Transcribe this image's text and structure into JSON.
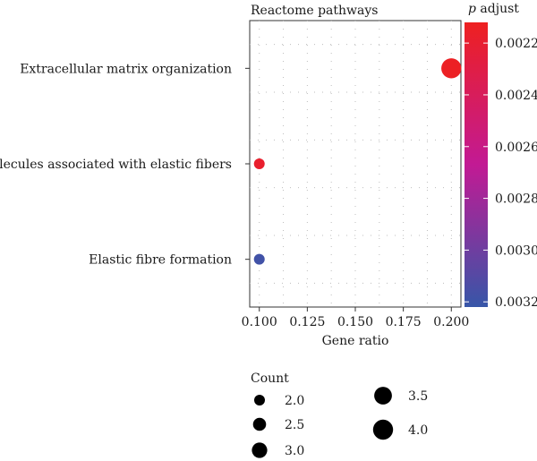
{
  "chart_data": {
    "type": "scatter",
    "title": "Reactome pathways",
    "xlabel": "Gene ratio",
    "xlim": [
      0.095,
      0.205
    ],
    "xticks": [
      "0.100",
      "0.125",
      "0.150",
      "0.175",
      "0.200"
    ],
    "xtick_values": [
      0.1,
      0.125,
      0.15,
      0.175,
      0.2
    ],
    "categories": [
      "Extracellular matrix organization",
      "Molecules associated with elastic fibers",
      "Elastic fibre formation"
    ],
    "grid": true,
    "points": [
      {
        "label": "Extracellular matrix organization",
        "x": 0.2,
        "count": 4,
        "p_adjust": 0.00214
      },
      {
        "label": "Molecules associated with elastic fibers",
        "x": 0.1,
        "count": 2,
        "p_adjust": 0.00218
      },
      {
        "label": "Elastic fibre formation",
        "x": 0.1,
        "count": 2,
        "p_adjust": 0.00318
      }
    ],
    "color_legend": {
      "title_italic": "p",
      "title_rest": " adjust",
      "min": 0.00212,
      "max": 0.00322,
      "ticks": [
        0.0022,
        0.0024,
        0.0026,
        0.0028,
        0.003,
        0.0032
      ],
      "tick_labels": [
        "0.0022",
        "0.0024",
        "0.0026",
        "0.0028",
        "0.0030",
        "0.0032"
      ],
      "low_color": "#ee2020",
      "mid_color": "#c21a94",
      "high_color": "#3756a8"
    },
    "size_legend": {
      "title": "Count",
      "entries": [
        {
          "value": 2.0,
          "label": "2.0"
        },
        {
          "value": 2.5,
          "label": "2.5"
        },
        {
          "value": 3.0,
          "label": "3.0"
        },
        {
          "value": 3.5,
          "label": "3.5"
        },
        {
          "value": 4.0,
          "label": "4.0"
        }
      ]
    }
  }
}
